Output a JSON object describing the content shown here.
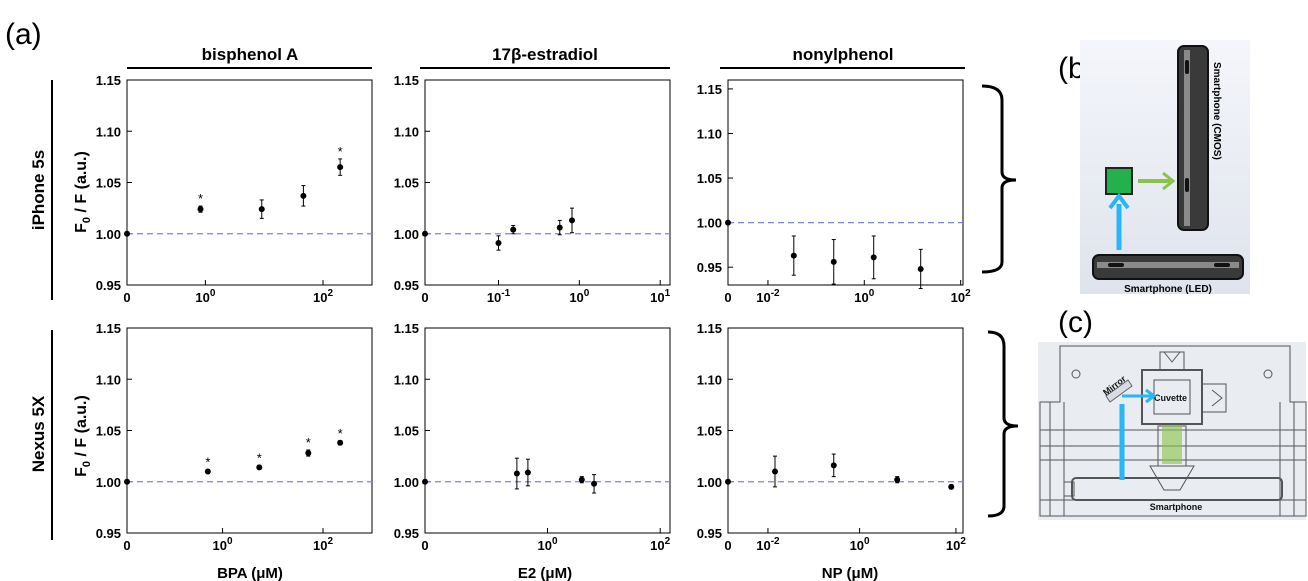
{
  "labels": {
    "panel_a": "(a)",
    "panel_b": "(b)",
    "panel_c": "(c)",
    "columns": [
      "bisphenol A",
      "17β-estradiol",
      "nonylphenol"
    ],
    "rows": [
      "iPhone 5s",
      "Nexus 5X"
    ],
    "ylabel_main": "F",
    "ylabel_sub": "0",
    "ylabel_rest": " / F (a.u.)",
    "xlabels": [
      "BPA (μM)",
      "E2 (μM)",
      "NP (μM)"
    ]
  },
  "diagram_b": {
    "cmos_label": "Smartphone (CMOS)",
    "led_label": "Smartphone (LED)",
    "sample_color": "#22b14c",
    "excitation_color": "#29b6f6",
    "emission_color": "#8bc34a"
  },
  "diagram_c": {
    "mirror_label": "Mirror",
    "cuvette_label": "Cuvette",
    "phone_label": "Smartphone",
    "excitation_color": "#29b6f6",
    "emission_color": "#8bc34a"
  },
  "colors": {
    "baseline": "#8080e0",
    "marker": "#000000",
    "axes": "#000000"
  },
  "chart_data": [
    {
      "type": "scatter",
      "column": "bisphenol A",
      "row": "iPhone 5s",
      "ylim": [
        0.95,
        1.15
      ],
      "yticks": [
        "0.95",
        "1.00",
        "1.05",
        "1.10",
        "1.15"
      ],
      "xticks": [
        {
          "label": "0",
          "pos": 0
        },
        {
          "label": "10",
          "exp": "0",
          "pos": 0.32
        },
        {
          "label": "10",
          "exp": "2",
          "pos": 0.8
        }
      ],
      "points": [
        {
          "x": "0",
          "y": 1.0,
          "err": 0
        },
        {
          "x": "0.5",
          "y": 1.024,
          "err": 0.003,
          "sig": true
        },
        {
          "x": "5",
          "y": 1.024,
          "err": 0.009
        },
        {
          "x": "50",
          "y": 1.037,
          "err": 0.01
        },
        {
          "x": "200",
          "y": 1.065,
          "err": 0.008,
          "sig": true
        }
      ]
    },
    {
      "type": "scatter",
      "column": "17β-estradiol",
      "row": "iPhone 5s",
      "ylim": [
        0.95,
        1.15
      ],
      "yticks": [
        "0.95",
        "1.00",
        "1.05",
        "1.10",
        "1.15"
      ],
      "xticks": [
        {
          "label": "0",
          "pos": 0
        },
        {
          "label": "10",
          "exp": "-1",
          "pos": 0.3
        },
        {
          "label": "10",
          "exp": "0",
          "pos": 0.63
        },
        {
          "label": "10",
          "exp": "1",
          "pos": 0.96
        }
      ],
      "points": [
        {
          "x": "0",
          "y": 1.0,
          "err": 0
        },
        {
          "x": "0.2",
          "y": 0.991,
          "err": 0.007
        },
        {
          "x": "0.4",
          "y": 1.004,
          "err": 0.004
        },
        {
          "x": "2",
          "y": 1.006,
          "err": 0.007
        },
        {
          "x": "4",
          "y": 1.013,
          "err": 0.012
        }
      ]
    },
    {
      "type": "scatter",
      "column": "nonylphenol",
      "row": "iPhone 5s",
      "ylim": [
        0.93,
        1.16
      ],
      "yticks": [
        "0.95",
        "1.00",
        "1.05",
        "1.10",
        "1.15"
      ],
      "xticks": [
        {
          "label": "0",
          "pos": 0
        },
        {
          "label": "10",
          "exp": "-2",
          "pos": 0.17
        },
        {
          "label": "10",
          "exp": "0",
          "pos": 0.58
        },
        {
          "label": "10",
          "exp": "2",
          "pos": 0.99
        }
      ],
      "points": [
        {
          "x": "0",
          "y": 1.0,
          "err": 0
        },
        {
          "x": "0.05",
          "y": 0.963,
          "err": 0.022
        },
        {
          "x": "0.5",
          "y": 0.956,
          "err": 0.025
        },
        {
          "x": "5",
          "y": 0.961,
          "err": 0.024
        },
        {
          "x": "50",
          "y": 0.948,
          "err": 0.022
        }
      ]
    },
    {
      "type": "scatter",
      "column": "bisphenol A",
      "row": "Nexus 5X",
      "ylim": [
        0.95,
        1.15
      ],
      "yticks": [
        "0.95",
        "1.00",
        "1.05",
        "1.10",
        "1.15"
      ],
      "xticks": [
        {
          "label": "0",
          "pos": 0
        },
        {
          "label": "10",
          "exp": "0",
          "pos": 0.39
        },
        {
          "label": "10",
          "exp": "2",
          "pos": 0.8
        }
      ],
      "points": [
        {
          "x": "0",
          "y": 1.0,
          "err": 0
        },
        {
          "x": "0.5",
          "y": 1.01,
          "err": 0.002,
          "sig": true
        },
        {
          "x": "5",
          "y": 1.014,
          "err": 0.002,
          "sig": true
        },
        {
          "x": "50",
          "y": 1.028,
          "err": 0.003,
          "sig": true
        },
        {
          "x": "200",
          "y": 1.038,
          "err": 0.002,
          "sig": true
        }
      ]
    },
    {
      "type": "scatter",
      "column": "17β-estradiol",
      "row": "Nexus 5X",
      "ylim": [
        0.95,
        1.15
      ],
      "yticks": [
        "0.95",
        "1.00",
        "1.05",
        "1.10",
        "1.15"
      ],
      "xticks": [
        {
          "label": "0",
          "pos": 0
        },
        {
          "label": "10",
          "exp": "0",
          "pos": 0.5
        },
        {
          "label": "10",
          "exp": "2",
          "pos": 0.96
        }
      ],
      "points": [
        {
          "x": "0",
          "y": 1.0,
          "err": 0
        },
        {
          "x": "0.2",
          "y": 1.008,
          "err": 0.015
        },
        {
          "x": "0.4",
          "y": 1.009,
          "err": 0.013
        },
        {
          "x": "2",
          "y": 1.002,
          "err": 0.003
        },
        {
          "x": "4",
          "y": 0.998,
          "err": 0.009
        }
      ]
    },
    {
      "type": "scatter",
      "column": "nonylphenol",
      "row": "Nexus 5X",
      "ylim": [
        0.95,
        1.15
      ],
      "yticks": [
        "0.95",
        "1.00",
        "1.05",
        "1.10",
        "1.15"
      ],
      "xticks": [
        {
          "label": "0",
          "pos": 0
        },
        {
          "label": "10",
          "exp": "-2",
          "pos": 0.17
        },
        {
          "label": "10",
          "exp": "0",
          "pos": 0.56
        },
        {
          "label": "10",
          "exp": "2",
          "pos": 0.97
        }
      ],
      "points": [
        {
          "x": "0",
          "y": 1.0,
          "err": 0
        },
        {
          "x": "0.05",
          "y": 1.01,
          "err": 0.015
        },
        {
          "x": "0.5",
          "y": 1.016,
          "err": 0.011
        },
        {
          "x": "5",
          "y": 1.002,
          "err": 0.003
        },
        {
          "x": "50",
          "y": 0.995,
          "err": 0.002
        }
      ]
    }
  ]
}
